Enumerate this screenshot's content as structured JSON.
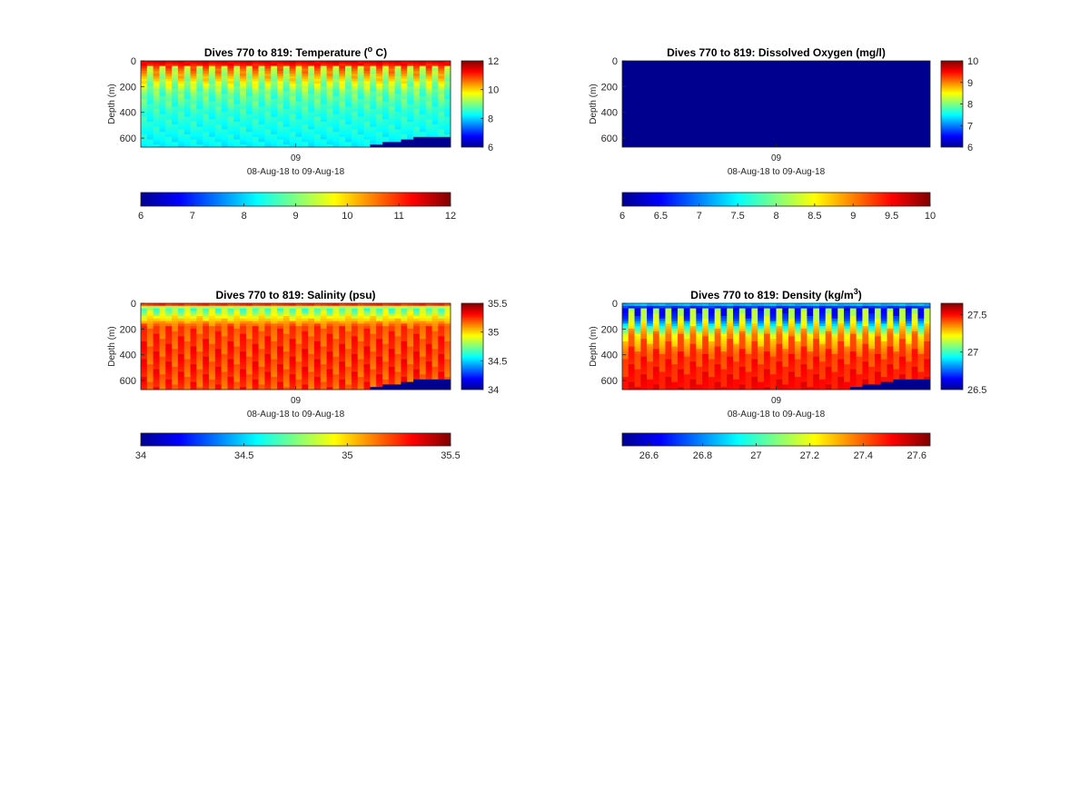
{
  "figure": {
    "background": "#ffffff",
    "colormap": "jet",
    "missing_color": "#00008f"
  },
  "chart_data": [
    {
      "type": "heatmap",
      "id": "temperature",
      "title": "Dives 770 to 819: Temperature (",
      "title_superscript": "o",
      "title_suffix": " C)",
      "xlabel": "08-Aug-18 to 09-Aug-18",
      "ylabel": "Depth (m)",
      "x_tick_labels": [
        "09"
      ],
      "y_ticks": [
        0,
        200,
        400,
        600
      ],
      "ylim": [
        0,
        670
      ],
      "y_reversed": true,
      "clim": [
        6,
        12
      ],
      "colorbar_ticks": [
        12,
        10,
        8,
        6
      ],
      "horizontal_colorbar_ticks": [
        6,
        7,
        8,
        9,
        10,
        11,
        12
      ],
      "dives": 50,
      "depth_profile": [
        {
          "depth": 0,
          "value": 11.5
        },
        {
          "depth": 60,
          "value": 10.8
        },
        {
          "depth": 150,
          "value": 10.0
        },
        {
          "depth": 250,
          "value": 9.1
        },
        {
          "depth": 400,
          "value": 8.6
        },
        {
          "depth": 550,
          "value": 8.4
        },
        {
          "depth": 670,
          "value": 8.2
        }
      ],
      "gap_value": 8.2,
      "bottom_depth_right": 590
    },
    {
      "type": "heatmap",
      "id": "oxygen",
      "title": "Dives 770 to 819: Dissolved Oxygen (mg/l)",
      "xlabel": "08-Aug-18 to 09-Aug-18",
      "ylabel": "Depth (m)",
      "x_tick_labels": [
        "09"
      ],
      "y_ticks": [
        0,
        200,
        400,
        600
      ],
      "ylim": [
        0,
        670
      ],
      "y_reversed": true,
      "clim": [
        6,
        10
      ],
      "colorbar_ticks": [
        10,
        9,
        8,
        7,
        6
      ],
      "horizontal_colorbar_ticks": [
        "6",
        "6.5",
        "7",
        "7.5",
        "8",
        "8.5",
        "9",
        "9.5",
        "10"
      ],
      "uniform_fill": "#00008f"
    },
    {
      "type": "heatmap",
      "id": "salinity",
      "title": "Dives 770 to 819: Salinity (psu)",
      "xlabel": "08-Aug-18 to 09-Aug-18",
      "ylabel": "Depth (m)",
      "x_tick_labels": [
        "09"
      ],
      "y_ticks": [
        0,
        200,
        400,
        600
      ],
      "ylim": [
        0,
        670
      ],
      "y_reversed": true,
      "clim": [
        34,
        35.5
      ],
      "colorbar_ticks": [
        "35.5",
        "35",
        "34.5",
        "34"
      ],
      "horizontal_colorbar_ticks": [
        "34",
        "34.5",
        "35",
        "35.5"
      ],
      "dives": 50,
      "depth_profile": [
        {
          "depth": 0,
          "value": 35.45
        },
        {
          "depth": 40,
          "value": 34.6
        },
        {
          "depth": 90,
          "value": 34.8
        },
        {
          "depth": 180,
          "value": 35.25
        },
        {
          "depth": 350,
          "value": 35.3
        },
        {
          "depth": 500,
          "value": 35.3
        },
        {
          "depth": 670,
          "value": 35.28
        }
      ],
      "gap_value": 35.05,
      "bottom_depth_right": 590
    },
    {
      "type": "heatmap",
      "id": "density",
      "title": "Dives 770 to 819: Density (kg/m",
      "title_superscript": "3",
      "title_suffix": ")",
      "xlabel": "08-Aug-18 to 09-Aug-18",
      "ylabel": "Depth (m)",
      "x_tick_labels": [
        "09"
      ],
      "y_ticks": [
        0,
        200,
        400,
        600
      ],
      "ylim": [
        0,
        670
      ],
      "y_reversed": true,
      "clim": [
        26.5,
        27.65
      ],
      "colorbar_ticks": [
        "27.5",
        "27",
        "26.5"
      ],
      "horizontal_colorbar_ticks": [
        "26.6",
        "26.8",
        "27",
        "27.2",
        "27.4",
        "27.6"
      ],
      "dives": 50,
      "depth_profile": [
        {
          "depth": 0,
          "value": 26.95
        },
        {
          "depth": 40,
          "value": 26.6
        },
        {
          "depth": 120,
          "value": 26.7
        },
        {
          "depth": 250,
          "value": 27.2
        },
        {
          "depth": 400,
          "value": 27.4
        },
        {
          "depth": 550,
          "value": 27.45
        },
        {
          "depth": 670,
          "value": 27.5
        }
      ],
      "gap_value": 27.55,
      "bottom_depth_right": 590
    }
  ]
}
